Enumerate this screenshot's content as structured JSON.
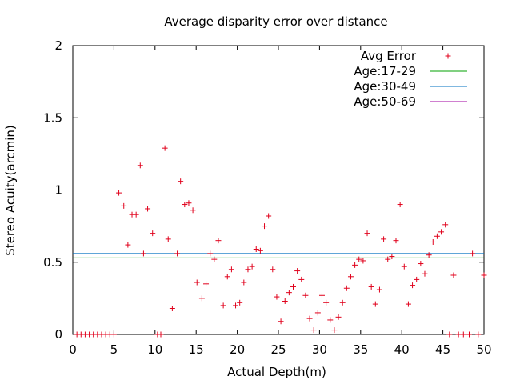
{
  "chart_data": {
    "type": "scatter",
    "title": "Average disparity error over distance",
    "xlabel": "Actual Depth(m)",
    "ylabel": "Stereo Acuity(arcmin)",
    "xlim": [
      0,
      50
    ],
    "ylim": [
      0,
      2
    ],
    "xticks": [
      "0",
      "5",
      "10",
      "15",
      "20",
      "25",
      "30",
      "35",
      "40",
      "45",
      "50"
    ],
    "yticks": [
      "0",
      "0.5",
      "1",
      "1.5",
      "2"
    ],
    "grid": false,
    "legend_position": "top-right",
    "series": [
      {
        "name": "Avg Error",
        "marker": "plus",
        "color": "#e0001b",
        "points": [
          [
            0.5,
            0
          ],
          [
            1.0,
            0
          ],
          [
            1.5,
            0
          ],
          [
            2.0,
            0
          ],
          [
            2.5,
            0
          ],
          [
            3.0,
            0
          ],
          [
            3.5,
            0
          ],
          [
            4.0,
            0
          ],
          [
            4.5,
            0
          ],
          [
            5.0,
            0
          ],
          [
            5.6,
            0.98
          ],
          [
            6.2,
            0.89
          ],
          [
            6.7,
            0.62
          ],
          [
            7.2,
            0.83
          ],
          [
            7.7,
            0.83
          ],
          [
            8.2,
            1.17
          ],
          [
            8.6,
            0.56
          ],
          [
            9.1,
            0.87
          ],
          [
            9.7,
            0.7
          ],
          [
            10.3,
            0
          ],
          [
            10.7,
            0
          ],
          [
            11.2,
            1.29
          ],
          [
            11.6,
            0.66
          ],
          [
            12.1,
            0.18
          ],
          [
            12.7,
            0.56
          ],
          [
            13.1,
            1.06
          ],
          [
            13.6,
            0.9
          ],
          [
            14.1,
            0.91
          ],
          [
            14.6,
            0.86
          ],
          [
            15.1,
            0.36
          ],
          [
            15.7,
            0.25
          ],
          [
            16.2,
            0.35
          ],
          [
            16.7,
            0.56
          ],
          [
            17.2,
            0.52
          ],
          [
            17.7,
            0.65
          ],
          [
            18.3,
            0.2
          ],
          [
            18.8,
            0.4
          ],
          [
            19.3,
            0.45
          ],
          [
            19.8,
            0.2
          ],
          [
            20.3,
            0.22
          ],
          [
            20.8,
            0.36
          ],
          [
            21.3,
            0.45
          ],
          [
            21.8,
            0.47
          ],
          [
            22.3,
            0.59
          ],
          [
            22.8,
            0.58
          ],
          [
            23.3,
            0.75
          ],
          [
            23.8,
            0.82
          ],
          [
            24.3,
            0.45
          ],
          [
            24.8,
            0.26
          ],
          [
            25.3,
            0.09
          ],
          [
            25.8,
            0.23
          ],
          [
            26.3,
            0.29
          ],
          [
            26.8,
            0.33
          ],
          [
            27.3,
            0.44
          ],
          [
            27.8,
            0.38
          ],
          [
            28.3,
            0.27
          ],
          [
            28.8,
            0.11
          ],
          [
            29.3,
            0.03
          ],
          [
            29.8,
            0.15
          ],
          [
            30.3,
            0.27
          ],
          [
            30.8,
            0.22
          ],
          [
            31.3,
            0.1
          ],
          [
            31.8,
            0.03
          ],
          [
            32.3,
            0.12
          ],
          [
            32.8,
            0.22
          ],
          [
            33.3,
            0.32
          ],
          [
            33.8,
            0.4
          ],
          [
            34.3,
            0.48
          ],
          [
            34.8,
            0.52
          ],
          [
            35.3,
            0.51
          ],
          [
            35.8,
            0.7
          ],
          [
            36.3,
            0.33
          ],
          [
            36.8,
            0.21
          ],
          [
            37.3,
            0.31
          ],
          [
            37.8,
            0.66
          ],
          [
            38.3,
            0.52
          ],
          [
            38.8,
            0.54
          ],
          [
            39.3,
            0.65
          ],
          [
            39.8,
            0.9
          ],
          [
            40.3,
            0.47
          ],
          [
            40.8,
            0.21
          ],
          [
            41.3,
            0.34
          ],
          [
            41.8,
            0.38
          ],
          [
            42.3,
            0.49
          ],
          [
            42.8,
            0.42
          ],
          [
            43.3,
            0.55
          ],
          [
            43.8,
            0.64
          ],
          [
            44.3,
            0.68
          ],
          [
            44.8,
            0.71
          ],
          [
            45.3,
            0.76
          ],
          [
            45.8,
            0
          ],
          [
            46.3,
            0.41
          ],
          [
            46.9,
            0
          ],
          [
            47.5,
            0
          ],
          [
            48.2,
            0
          ],
          [
            48.6,
            0.56
          ],
          [
            49.3,
            0
          ],
          [
            50.0,
            0.41
          ]
        ]
      },
      {
        "name": "Age:17-29",
        "marker": "line",
        "color": "#00a000",
        "y": 0.53
      },
      {
        "name": "Age:30-49",
        "marker": "line",
        "color": "#0070c0",
        "y": 0.56
      },
      {
        "name": "Age:50-69",
        "marker": "line",
        "color": "#a000a0",
        "y": 0.64
      }
    ]
  }
}
